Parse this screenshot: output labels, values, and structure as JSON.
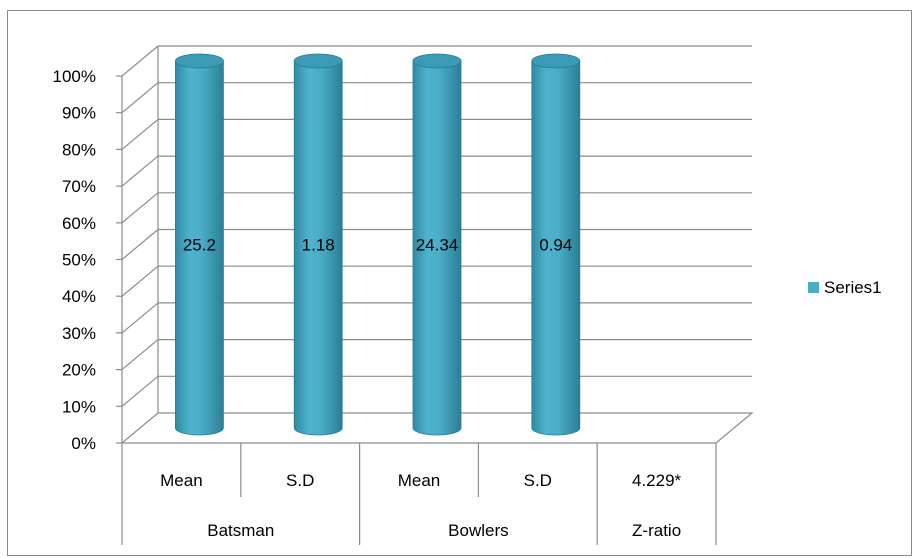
{
  "chart_data": {
    "type": "bar",
    "style": "3d-cylinder-100%-stacked",
    "ylim": [
      0,
      100
    ],
    "y_ticks": [
      "0%",
      "10%",
      "20%",
      "30%",
      "40%",
      "50%",
      "60%",
      "70%",
      "80%",
      "90%",
      "100%"
    ],
    "grid": true,
    "categories": [
      {
        "group": "Batsman",
        "label": "Mean"
      },
      {
        "group": "Batsman",
        "label": "S.D"
      },
      {
        "group": "Bowlers",
        "label": "Mean"
      },
      {
        "group": "Bowlers",
        "label": "S.D"
      },
      {
        "group": "Z-ratio",
        "label": "4.229*"
      }
    ],
    "series": [
      {
        "name": "Series1",
        "color": "#4bacc6",
        "values": [
          25.2,
          1.18,
          24.34,
          0.94,
          null
        ],
        "data_labels": [
          "25.2",
          "1.18",
          "24.34",
          "0.94",
          ""
        ]
      }
    ],
    "bar_fill_percent": [
      100,
      100,
      100,
      100,
      0
    ],
    "legend": {
      "position": "right",
      "entries": [
        "Series1"
      ]
    }
  }
}
